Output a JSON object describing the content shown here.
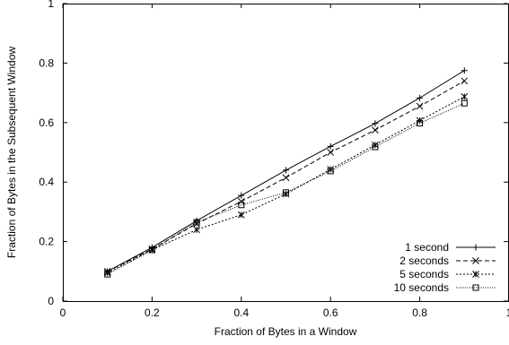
{
  "chart_data": {
    "type": "line",
    "title": "",
    "xlabel": "Fraction of Bytes in a Window",
    "ylabel": "Fraction of Bytes in the Subsequent Window",
    "xlim": [
      0,
      1
    ],
    "ylim": [
      0,
      1
    ],
    "x_ticks": [
      0,
      0.2,
      0.4,
      0.6,
      0.8,
      1
    ],
    "x_tick_labels": [
      "0",
      "0.2",
      "0.4",
      "0.6",
      "0.8",
      "1"
    ],
    "y_ticks": [
      0,
      0.2,
      0.4,
      0.6,
      0.8,
      1
    ],
    "y_tick_labels": [
      "0",
      "0.2",
      "0.4",
      "0.6",
      "0.8",
      "1"
    ],
    "grid": false,
    "legend_position": "bottom-right",
    "x": [
      0.1,
      0.2,
      0.3,
      0.4,
      0.5,
      0.6,
      0.7,
      0.8,
      0.9
    ],
    "series": [
      {
        "name": "1 second",
        "marker": "plus",
        "dash": "solid",
        "values": [
          0.1,
          0.18,
          0.27,
          0.355,
          0.44,
          0.52,
          0.597,
          0.683,
          0.775
        ]
      },
      {
        "name": "2 seconds",
        "marker": "cross",
        "dash": "dashed",
        "values": [
          0.1,
          0.175,
          0.26,
          0.335,
          0.415,
          0.5,
          0.575,
          0.655,
          0.74
        ]
      },
      {
        "name": "5 seconds",
        "marker": "star",
        "dash": "short-dashed",
        "values": [
          0.095,
          0.172,
          0.24,
          0.29,
          0.36,
          0.443,
          0.525,
          0.607,
          0.687
        ]
      },
      {
        "name": "10 seconds",
        "marker": "square",
        "dash": "dotted",
        "values": [
          0.09,
          0.172,
          0.265,
          0.323,
          0.365,
          0.437,
          0.518,
          0.598,
          0.665
        ]
      }
    ]
  }
}
